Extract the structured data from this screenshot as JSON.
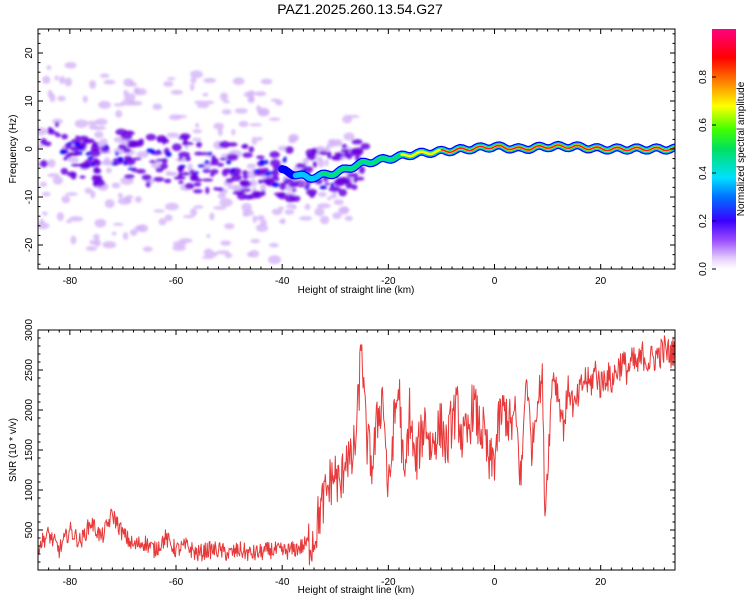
{
  "title": "PAZ1.2025.260.13.54.G27",
  "colors": {
    "snr_line": "#e8393a",
    "ridge_core": "#ff1a1a",
    "ridge_mid": "#00e07a",
    "ridge_outer": "#0000ff",
    "scatter_strong": "#6a00e0",
    "scatter_weak": "#d4b3f7"
  },
  "chart_data": [
    {
      "type": "heatmap",
      "xlabel": "Height of straight line (km)",
      "ylabel": "Frequency (Hz)",
      "xlim": [
        -86,
        34
      ],
      "ylim": [
        -25,
        25
      ],
      "xticks": [
        -80,
        -60,
        -40,
        -20,
        0,
        20
      ],
      "yticks": [
        -20,
        -10,
        0,
        10,
        20
      ],
      "grid": false,
      "ridge": {
        "height_km": [
          -85,
          -80,
          -75,
          -70,
          -65,
          -60,
          -55,
          -50,
          -45,
          -40,
          -35,
          -30,
          -25,
          -20,
          -15,
          -10,
          -5,
          0,
          5,
          10,
          15,
          20,
          25,
          30,
          34
        ],
        "frequency_hz": [
          1.5,
          -1,
          -2,
          -1.5,
          -2,
          -2.5,
          -3.5,
          -4,
          -5,
          -4.5,
          -6,
          -5,
          -3,
          -2,
          -1,
          -0.5,
          0,
          0.5,
          0,
          0.5,
          0.5,
          0,
          0,
          0,
          0
        ],
        "amplitude": [
          0.15,
          0.15,
          0.15,
          0.15,
          0.15,
          0.15,
          0.15,
          0.18,
          0.2,
          0.25,
          0.35,
          0.45,
          0.45,
          0.5,
          0.6,
          0.7,
          0.75,
          0.8,
          0.8,
          0.85,
          0.85,
          0.9,
          0.9,
          0.9,
          0.9
        ]
      },
      "colorbar": {
        "label": "Normalized spectral amplitude",
        "range": [
          0,
          1
        ],
        "ticks": [
          "0.0",
          "0.2",
          "0.4",
          "0.6",
          "0.8"
        ],
        "colormap": "rainbow (white-violet-blue-cyan-green-yellow-red-magenta)"
      }
    },
    {
      "type": "line",
      "xlabel": "Height of straight line (km)",
      "ylabel": "SNR (10 * v/v)",
      "xlim": [
        -86,
        34
      ],
      "ylim": [
        0,
        3000
      ],
      "xticks": [
        -80,
        -60,
        -40,
        -20,
        0,
        20
      ],
      "yticks": [
        500,
        1000,
        1500,
        2000,
        2500,
        3000
      ],
      "grid": false,
      "series": [
        {
          "x": [
            -86,
            -84,
            -82,
            -80,
            -78,
            -76,
            -74,
            -72,
            -70,
            -68,
            -66,
            -64,
            -62,
            -60,
            -58,
            -56,
            -54,
            -52,
            -50,
            -48,
            -46,
            -44,
            -42,
            -40,
            -38,
            -36,
            -34,
            -33,
            -32,
            -31,
            -30,
            -29,
            -28,
            -27,
            -26,
            -25,
            -24.5,
            -24,
            -23,
            -22,
            -21,
            -20,
            -19,
            -18,
            -17,
            -16,
            -15,
            -14,
            -13,
            -12,
            -11,
            -10,
            -9,
            -8,
            -7,
            -6,
            -5,
            -4,
            -3,
            -2,
            -1,
            0,
            1,
            2,
            3,
            4,
            5,
            6,
            7,
            8,
            9,
            9.5,
            10,
            11,
            12,
            13,
            14,
            15,
            16,
            17,
            18,
            19,
            20,
            21,
            22,
            23,
            24,
            25,
            26,
            27,
            28,
            29,
            30,
            31,
            32,
            33,
            34
          ],
          "y": [
            300,
            450,
            250,
            500,
            350,
            600,
            400,
            700,
            450,
            300,
            350,
            250,
            400,
            250,
            300,
            200,
            250,
            250,
            200,
            250,
            200,
            220,
            250,
            230,
            250,
            300,
            400,
            700,
            900,
            1100,
            1200,
            1000,
            1500,
            1300,
            1700,
            2900,
            2000,
            1600,
            1300,
            1900,
            2200,
            900,
            1800,
            2300,
            1000,
            2000,
            1300,
            1600,
            1900,
            1500,
            1700,
            1800,
            1500,
            1900,
            2000,
            1600,
            1700,
            2100,
            1800,
            1700,
            1300,
            1400,
            1900,
            2000,
            1800,
            1900,
            1100,
            2500,
            1500,
            2100,
            2400,
            700,
            1300,
            2500,
            2200,
            1800,
            2300,
            2000,
            2200,
            2400,
            2300,
            2500,
            2300,
            2450,
            2350,
            2500,
            2600,
            2500,
            2600,
            2550,
            2700,
            2600,
            2650,
            2700,
            2750,
            2700,
            2750
          ]
        }
      ]
    }
  ]
}
